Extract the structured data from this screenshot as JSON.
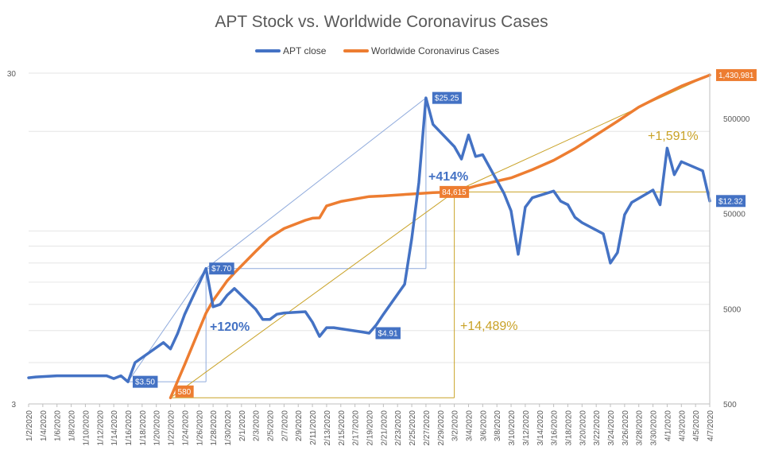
{
  "chart_data": {
    "type": "line",
    "title": "APT Stock vs. Worldwide Coronavirus Cases",
    "legend": {
      "position": "top"
    },
    "x": [
      "1/2/2020",
      "1/3/2020",
      "1/6/2020",
      "1/7/2020",
      "1/8/2020",
      "1/9/2020",
      "1/10/2020",
      "1/13/2020",
      "1/14/2020",
      "1/15/2020",
      "1/16/2020",
      "1/17/2020",
      "1/21/2020",
      "1/22/2020",
      "1/23/2020",
      "1/24/2020",
      "1/27/2020",
      "1/28/2020",
      "1/29/2020",
      "1/30/2020",
      "1/31/2020",
      "2/3/2020",
      "2/4/2020",
      "2/5/2020",
      "2/6/2020",
      "2/7/2020",
      "2/10/2020",
      "2/11/2020",
      "2/12/2020",
      "2/13/2020",
      "2/14/2020",
      "2/18/2020",
      "2/19/2020",
      "2/20/2020",
      "2/21/2020",
      "2/24/2020",
      "2/25/2020",
      "2/26/2020",
      "2/27/2020",
      "2/28/2020",
      "3/2/2020",
      "3/3/2020",
      "3/4/2020",
      "3/5/2020",
      "3/6/2020",
      "3/9/2020",
      "3/10/2020",
      "3/11/2020",
      "3/12/2020",
      "3/13/2020",
      "3/16/2020",
      "3/17/2020",
      "3/18/2020",
      "3/19/2020",
      "3/20/2020",
      "3/23/2020",
      "3/24/2020",
      "3/25/2020",
      "3/26/2020",
      "3/27/2020",
      "3/30/2020",
      "3/31/2020",
      "4/1/2020",
      "4/2/2020",
      "4/3/2020",
      "4/6/2020",
      "4/7/2020"
    ],
    "x_tick_labels": [
      "1/2/2020",
      "1/4/2020",
      "1/6/2020",
      "1/8/2020",
      "1/10/2020",
      "1/12/2020",
      "1/14/2020",
      "1/16/2020",
      "1/18/2020",
      "1/20/2020",
      "1/22/2020",
      "1/24/2020",
      "1/26/2020",
      "1/28/2020",
      "1/30/2020",
      "2/1/2020",
      "2/3/2020",
      "2/5/2020",
      "2/7/2020",
      "2/9/2020",
      "2/11/2020",
      "2/13/2020",
      "2/15/2020",
      "2/17/2020",
      "2/19/2020",
      "2/21/2020",
      "2/23/2020",
      "2/25/2020",
      "2/27/2020",
      "2/29/2020",
      "3/2/2020",
      "3/4/2020",
      "3/6/2020",
      "3/8/2020",
      "3/10/2020",
      "3/12/2020",
      "3/14/2020",
      "3/16/2020",
      "3/18/2020",
      "3/20/2020",
      "3/22/2020",
      "3/24/2020",
      "3/26/2020",
      "3/28/2020",
      "3/30/2020",
      "4/1/2020",
      "4/3/2020",
      "4/5/2020",
      "4/7/2020"
    ],
    "x_range": [
      "1/2/2020",
      "4/7/2020"
    ],
    "series": [
      {
        "name": "APT close",
        "color": "#4472C4",
        "axis": "left",
        "points": [
          [
            "1/2/2020",
            3.6
          ],
          [
            "1/3/2020",
            3.62
          ],
          [
            "1/6/2020",
            3.65
          ],
          [
            "1/7/2020",
            3.65
          ],
          [
            "1/8/2020",
            3.65
          ],
          [
            "1/9/2020",
            3.65
          ],
          [
            "1/10/2020",
            3.65
          ],
          [
            "1/13/2020",
            3.65
          ],
          [
            "1/14/2020",
            3.58
          ],
          [
            "1/15/2020",
            3.65
          ],
          [
            "1/16/2020",
            3.5
          ],
          [
            "1/17/2020",
            4.0
          ],
          [
            "1/21/2020",
            4.6
          ],
          [
            "1/22/2020",
            4.4
          ],
          [
            "1/23/2020",
            4.9
          ],
          [
            "1/24/2020",
            5.6
          ],
          [
            "1/27/2020",
            7.7
          ],
          [
            "1/28/2020",
            5.9
          ],
          [
            "1/29/2020",
            6.0
          ],
          [
            "1/30/2020",
            6.4
          ],
          [
            "1/31/2020",
            6.7
          ],
          [
            "2/3/2020",
            5.8
          ],
          [
            "2/4/2020",
            5.4
          ],
          [
            "2/5/2020",
            5.4
          ],
          [
            "2/6/2020",
            5.6
          ],
          [
            "2/7/2020",
            5.65
          ],
          [
            "2/10/2020",
            5.7
          ],
          [
            "2/11/2020",
            5.3
          ],
          [
            "2/12/2020",
            4.8
          ],
          [
            "2/13/2020",
            5.1
          ],
          [
            "2/14/2020",
            5.1
          ],
          [
            "2/18/2020",
            4.95
          ],
          [
            "2/19/2020",
            4.91
          ],
          [
            "2/20/2020",
            5.2
          ],
          [
            "2/21/2020",
            5.6
          ],
          [
            "2/24/2020",
            6.9
          ],
          [
            "2/25/2020",
            9.5
          ],
          [
            "2/26/2020",
            14.0
          ],
          [
            "2/27/2020",
            25.25
          ],
          [
            "2/28/2020",
            21.0
          ],
          [
            "3/2/2020",
            18.0
          ],
          [
            "3/3/2020",
            16.5
          ],
          [
            "3/4/2020",
            19.5
          ],
          [
            "3/5/2020",
            16.8
          ],
          [
            "3/6/2020",
            17.0
          ],
          [
            "3/9/2020",
            13.0
          ],
          [
            "3/10/2020",
            11.5
          ],
          [
            "3/11/2020",
            8.5
          ],
          [
            "3/12/2020",
            11.8
          ],
          [
            "3/13/2020",
            12.6
          ],
          [
            "3/16/2020",
            13.2
          ],
          [
            "3/17/2020",
            12.3
          ],
          [
            "3/18/2020",
            12.0
          ],
          [
            "3/19/2020",
            11.0
          ],
          [
            "3/20/2020",
            10.6
          ],
          [
            "3/23/2020",
            9.8
          ],
          [
            "3/24/2020",
            8.0
          ],
          [
            "3/25/2020",
            8.6
          ],
          [
            "3/26/2020",
            11.2
          ],
          [
            "3/27/2020",
            12.2
          ],
          [
            "3/30/2020",
            13.3
          ],
          [
            "3/31/2020",
            12.0
          ],
          [
            "4/1/2020",
            17.8
          ],
          [
            "4/2/2020",
            14.8
          ],
          [
            "4/3/2020",
            16.2
          ],
          [
            "4/6/2020",
            15.2
          ],
          [
            "4/7/2020",
            12.32
          ]
        ]
      },
      {
        "name": "Worldwide Coronavirus Cases",
        "color": "#ED7D31",
        "axis": "right",
        "points": [
          [
            "1/22/2020",
            580
          ],
          [
            "1/24/2020",
            1300
          ],
          [
            "1/27/2020",
            4500
          ],
          [
            "1/28/2020",
            6100
          ],
          [
            "1/30/2020",
            9900
          ],
          [
            "1/31/2020",
            11900
          ],
          [
            "2/3/2020",
            20100
          ],
          [
            "2/5/2020",
            28000
          ],
          [
            "2/7/2020",
            34900
          ],
          [
            "2/10/2020",
            42600
          ],
          [
            "2/11/2020",
            44800
          ],
          [
            "2/12/2020",
            45200
          ],
          [
            "2/13/2020",
            60400
          ],
          [
            "2/15/2020",
            67100
          ],
          [
            "2/19/2020",
            75600
          ],
          [
            "2/21/2020",
            76800
          ],
          [
            "2/25/2020",
            80400
          ],
          [
            "2/28/2020",
            83100
          ],
          [
            "3/2/2020",
            84615
          ],
          [
            "3/5/2020",
            97800
          ],
          [
            "3/10/2020",
            119000
          ],
          [
            "3/13/2020",
            145000
          ],
          [
            "3/16/2020",
            182000
          ],
          [
            "3/19/2020",
            242000
          ],
          [
            "3/22/2020",
            337000
          ],
          [
            "3/25/2020",
            468000
          ],
          [
            "3/28/2020",
            660000
          ],
          [
            "3/31/2020",
            857000
          ],
          [
            "4/3/2020",
            1096000
          ],
          [
            "4/7/2020",
            1430981
          ]
        ]
      }
    ],
    "left_axis": {
      "scale": "log",
      "range": [
        3,
        30
      ],
      "tick_labels": [
        "30",
        "3"
      ]
    },
    "right_axis": {
      "scale": "log",
      "range": [
        500,
        1500000
      ],
      "tick_labels": [
        "500000",
        "50000",
        "5000",
        "500"
      ]
    },
    "annotations": {
      "apt_low": {
        "label": "$3.50",
        "date": "1/16/2020",
        "value": 3.5
      },
      "apt_jan_peak": {
        "label": "$7.70",
        "date": "1/27/2020",
        "value": 7.7
      },
      "apt_feb_low": {
        "label": "$4.91",
        "date": "2/19/2020",
        "value": 4.91
      },
      "apt_peak": {
        "label": "$25.25",
        "date": "2/27/2020",
        "value": 25.25
      },
      "apt_last": {
        "label": "$12.32",
        "date": "4/7/2020",
        "value": 12.32
      },
      "cases_start": {
        "label": "580",
        "date": "1/22/2020",
        "value": 580
      },
      "cases_mid": {
        "label": "84,615",
        "date": "3/2/2020",
        "value": 84615
      },
      "cases_last": {
        "label": "1,430,981",
        "date": "4/7/2020",
        "value": 1430981
      },
      "pct_120": "+120%",
      "pct_414": "+414%",
      "pct_14489": "+14,489%",
      "pct_1591": "+1,591%"
    }
  }
}
